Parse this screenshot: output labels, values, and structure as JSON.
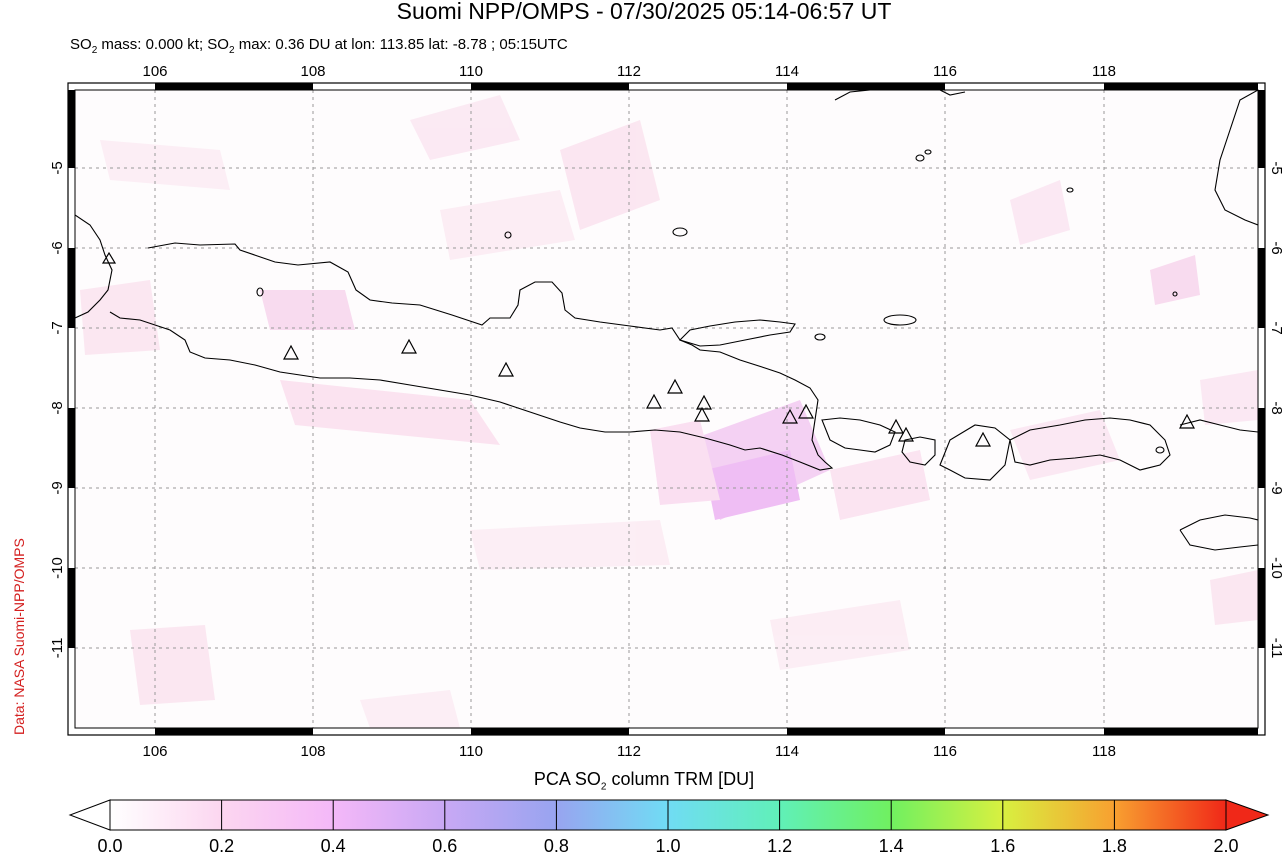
{
  "title": "Suomi NPP/OMPS - 07/30/2025 05:14-06:57 UT",
  "subtitle": {
    "prefix": "SO",
    "sub": "2",
    "mid": " mass: 0.000 kt; SO",
    "sub2": "2",
    "rest": " max: 0.36 DU at lon: 113.85 lat: -8.78 ; 05:15UTC"
  },
  "credit": "Data: NASA Suomi-NPP/OMPS",
  "colorbar": {
    "title_prefix": "PCA SO",
    "title_sub": "2",
    "title_rest": " column TRM [DU]",
    "ticks": [
      "0.0",
      "0.2",
      "0.4",
      "0.6",
      "0.8",
      "1.0",
      "1.2",
      "1.4",
      "1.6",
      "1.8",
      "2.0"
    ],
    "colors": [
      "#ffffff",
      "#fcd6f0",
      "#f0b0f8",
      "#b8a0f0",
      "#90a8f0",
      "#70e0f0",
      "#60f0b0",
      "#70f060",
      "#c8f040",
      "#f8c030",
      "#f04020"
    ]
  },
  "map": {
    "lon_ticks": [
      "106",
      "108",
      "110",
      "112",
      "114",
      "116",
      "118"
    ],
    "lat_ticks": [
      "-5",
      "-6",
      "-7",
      "-8",
      "-9",
      "-10",
      "-11"
    ],
    "volcano_icon": "triangle-volcano-icon"
  }
}
